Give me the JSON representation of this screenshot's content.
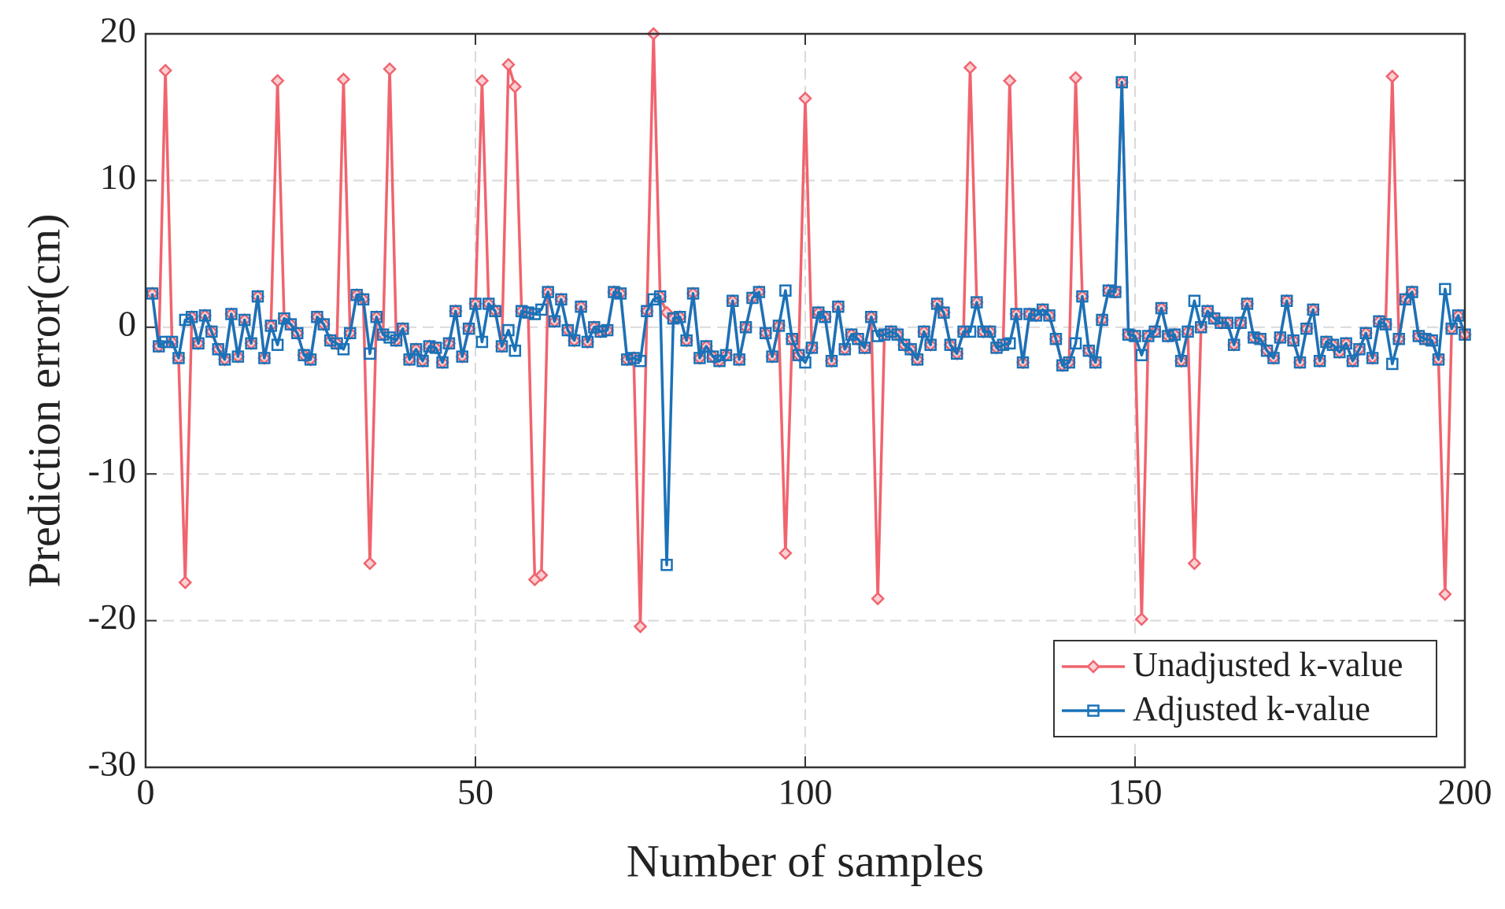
{
  "chart_data": {
    "type": "line",
    "xlabel": "Number of samples",
    "ylabel": "Prediction error(cm)",
    "xlim": [
      0,
      200
    ],
    "xticks": [
      0,
      50,
      100,
      150,
      200
    ],
    "ylim": [
      -30,
      20
    ],
    "yticks": [
      -30,
      -20,
      -10,
      0,
      10,
      20
    ],
    "grid": true,
    "legend": "lower right",
    "x": [
      1,
      2,
      3,
      4,
      5,
      6,
      7,
      8,
      9,
      10,
      11,
      12,
      13,
      14,
      15,
      16,
      17,
      18,
      19,
      20,
      21,
      22,
      23,
      24,
      25,
      26,
      27,
      28,
      29,
      30,
      31,
      32,
      33,
      34,
      35,
      36,
      37,
      38,
      39,
      40,
      41,
      42,
      43,
      44,
      45,
      46,
      47,
      48,
      49,
      50,
      51,
      52,
      53,
      54,
      55,
      56,
      57,
      58,
      59,
      60,
      61,
      62,
      63,
      64,
      65,
      66,
      67,
      68,
      69,
      70,
      71,
      72,
      73,
      74,
      75,
      76,
      77,
      78,
      79,
      80,
      81,
      82,
      83,
      84,
      85,
      86,
      87,
      88,
      89,
      90,
      91,
      92,
      93,
      94,
      95,
      96,
      97,
      98,
      99,
      100,
      101,
      102,
      103,
      104,
      105,
      106,
      107,
      108,
      109,
      110,
      111,
      112,
      113,
      114,
      115,
      116,
      117,
      118,
      119,
      120,
      121,
      122,
      123,
      124,
      125,
      126,
      127,
      128,
      129,
      130,
      131,
      132,
      133,
      134,
      135,
      136,
      137,
      138,
      139,
      140,
      141,
      142,
      143,
      144,
      145,
      146,
      147,
      148,
      149,
      150,
      151,
      152,
      153,
      154,
      155,
      156,
      157,
      158,
      159,
      160,
      161,
      162,
      163,
      164,
      165,
      166,
      167,
      168,
      169,
      170,
      171,
      172,
      173,
      174,
      175,
      176,
      177,
      178,
      179,
      180,
      181,
      182,
      183,
      184,
      185,
      186,
      187,
      188,
      189,
      190,
      191,
      192,
      193,
      194,
      195,
      196,
      197,
      198,
      199,
      200
    ],
    "series": [
      {
        "name": "Unadjusted k-value",
        "color": "#f0646e",
        "marker": "diamond",
        "values": [
          2.3,
          -1.3,
          17.5,
          -1.0,
          -2.1,
          -17.4,
          0.7,
          -1.1,
          0.8,
          -0.3,
          -1.5,
          -2.2,
          0.9,
          -2.0,
          0.5,
          -1.1,
          2.1,
          -2.1,
          0.1,
          16.8,
          0.6,
          0.2,
          -0.4,
          -1.9,
          -2.2,
          0.7,
          0.2,
          -0.9,
          -1.1,
          16.9,
          -0.4,
          2.2,
          1.9,
          -16.1,
          0.7,
          -0.5,
          17.6,
          -0.9,
          -0.1,
          -2.2,
          -1.5,
          -2.3,
          -1.3,
          -1.4,
          -2.4,
          -1.1,
          1.1,
          -2.0,
          -0.1,
          1.6,
          16.8,
          1.6,
          1.1,
          -1.3,
          17.9,
          16.4,
          1.1,
          1.0,
          -17.2,
          -16.9,
          2.4,
          0.4,
          1.9,
          -0.2,
          -0.9,
          1.4,
          -1.0,
          0.0,
          -0.3,
          -0.2,
          2.4,
          2.3,
          -2.2,
          -2.1,
          -20.4,
          1.1,
          20.0,
          2.1,
          1.0,
          0.6,
          0.7,
          -0.9,
          2.3,
          -2.1,
          -1.3,
          -2.0,
          -2.3,
          -1.9,
          1.8,
          -2.2,
          0.0,
          2.0,
          2.4,
          -0.4,
          -2.0,
          0.1,
          -15.4,
          -0.8,
          -1.9,
          15.6,
          -1.4,
          1.0,
          0.7,
          -2.3,
          1.4,
          -1.5,
          -0.5,
          -0.8,
          -1.4,
          0.7,
          -18.5,
          -0.5,
          -0.3,
          -0.5,
          -1.2,
          -1.5,
          -2.2,
          -0.3,
          -1.2,
          1.6,
          1.0,
          -1.2,
          -1.8,
          -0.3,
          17.7,
          1.7,
          -0.3,
          -0.3,
          -1.4,
          -1.2,
          16.8,
          0.9,
          -2.4,
          0.9,
          0.8,
          1.2,
          0.8,
          -0.8,
          -2.6,
          -2.4,
          17.0,
          2.1,
          -1.6,
          -2.4,
          0.5,
          2.5,
          2.4,
          16.7,
          -0.5,
          -0.6,
          -19.9,
          -0.6,
          -0.3,
          1.3,
          -0.6,
          -0.5,
          -2.3,
          -0.3,
          -16.1,
          0.0,
          1.1,
          0.6,
          0.3,
          0.3,
          -1.2,
          0.3,
          1.6,
          -0.7,
          -0.8,
          -1.6,
          -2.1,
          -0.7,
          1.8,
          -0.9,
          -2.4,
          -0.1,
          1.2,
          -2.3,
          -1.0,
          -1.2,
          -1.7,
          -1.1,
          -2.3,
          -1.5,
          -0.4,
          -2.1,
          0.4,
          0.2,
          17.1,
          -0.8,
          1.9,
          2.4,
          -0.6,
          -0.8,
          -0.9,
          -2.2,
          -18.2,
          -0.1,
          0.8,
          -0.5
        ]
      },
      {
        "name": "Adjusted k-value",
        "color": "#1a72b8",
        "marker": "square",
        "values": [
          2.3,
          -1.3,
          -1.0,
          -1.0,
          -2.1,
          0.5,
          0.7,
          -1.1,
          0.8,
          -0.3,
          -1.5,
          -2.2,
          0.9,
          -2.0,
          0.5,
          -1.1,
          2.1,
          -2.1,
          0.1,
          -1.2,
          0.6,
          0.2,
          -0.4,
          -1.9,
          -2.2,
          0.7,
          0.2,
          -0.9,
          -1.1,
          -1.5,
          -0.4,
          2.2,
          1.9,
          -1.8,
          0.7,
          -0.5,
          -0.7,
          -0.9,
          -0.1,
          -2.2,
          -1.5,
          -2.3,
          -1.3,
          -1.4,
          -2.4,
          -1.1,
          1.1,
          -2.0,
          -0.1,
          1.6,
          -1.0,
          1.6,
          1.1,
          -1.3,
          -0.2,
          -1.6,
          1.1,
          1.0,
          0.9,
          1.2,
          2.4,
          0.4,
          1.9,
          -0.2,
          -0.9,
          1.4,
          -1.0,
          0.0,
          -0.3,
          -0.2,
          2.4,
          2.3,
          -2.2,
          -2.1,
          -2.3,
          1.1,
          1.9,
          2.1,
          -16.2,
          0.6,
          0.7,
          -0.9,
          2.3,
          -2.1,
          -1.3,
          -2.0,
          -2.3,
          -1.9,
          1.8,
          -2.2,
          0.0,
          2.0,
          2.4,
          -0.4,
          -2.0,
          0.1,
          2.5,
          -0.8,
          -1.9,
          -2.4,
          -1.4,
          1.0,
          0.7,
          -2.3,
          1.4,
          -1.5,
          -0.5,
          -0.8,
          -1.4,
          0.7,
          -0.6,
          -0.5,
          -0.3,
          -0.5,
          -1.2,
          -1.5,
          -2.2,
          -0.3,
          -1.2,
          1.6,
          1.0,
          -1.2,
          -1.8,
          -0.3,
          -0.3,
          1.7,
          -0.3,
          -0.3,
          -1.4,
          -1.2,
          -1.1,
          0.9,
          -2.4,
          0.9,
          0.8,
          1.2,
          0.8,
          -0.8,
          -2.6,
          -2.4,
          -1.1,
          2.1,
          -1.6,
          -2.4,
          0.5,
          2.5,
          2.4,
          16.7,
          -0.5,
          -0.6,
          -1.9,
          -0.6,
          -0.3,
          1.3,
          -0.6,
          -0.5,
          -2.3,
          -0.3,
          1.8,
          0.0,
          1.1,
          0.6,
          0.3,
          0.3,
          -1.2,
          0.3,
          1.6,
          -0.7,
          -0.8,
          -1.6,
          -2.1,
          -0.7,
          1.8,
          -0.9,
          -2.4,
          -0.1,
          1.2,
          -2.3,
          -1.0,
          -1.2,
          -1.7,
          -1.1,
          -2.3,
          -1.5,
          -0.4,
          -2.1,
          0.4,
          0.2,
          -2.5,
          -0.8,
          1.9,
          2.4,
          -0.6,
          -0.8,
          -0.9,
          -2.2,
          2.6,
          -0.1,
          0.8,
          -0.5
        ]
      }
    ]
  }
}
